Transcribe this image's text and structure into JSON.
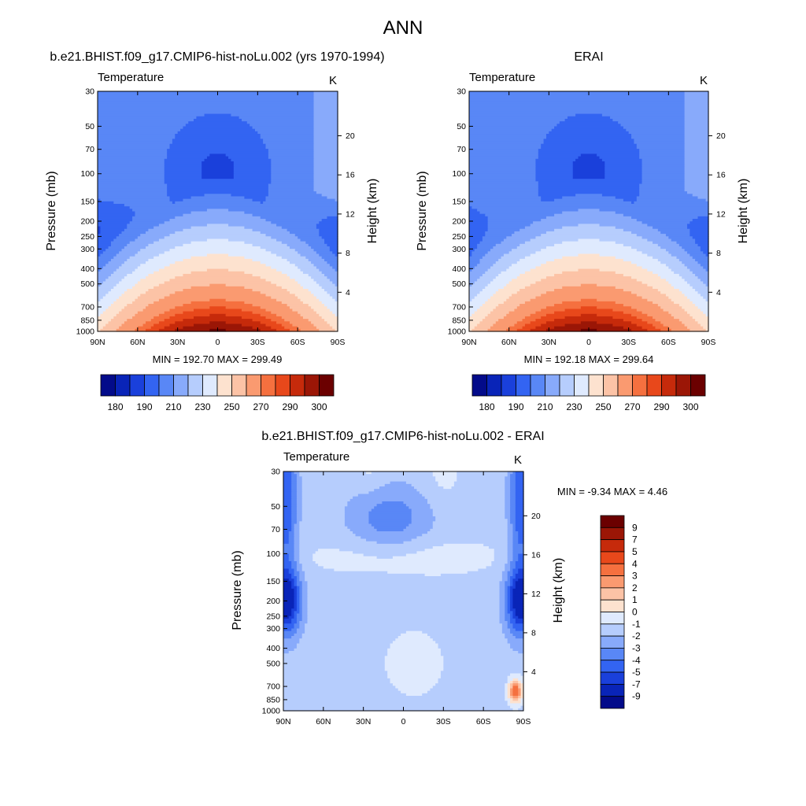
{
  "figure_title": "ANN",
  "colors": {
    "temperature_levels": [
      "#030b8a",
      "#0924b8",
      "#1a40db",
      "#3364f2",
      "#5987f6",
      "#88aafb",
      "#b6cdfd",
      "#dfeafe",
      "#fde2cf",
      "#fcc3a6",
      "#fa9a70",
      "#f5703f",
      "#e8481b",
      "#c62a0b",
      "#9b1606",
      "#6b0000"
    ],
    "difference_levels": [
      "#030b8a",
      "#0924b8",
      "#1a40db",
      "#3364f2",
      "#5987f6",
      "#88aafb",
      "#b6cdfd",
      "#dfeafe",
      "#fde2cf",
      "#fcc3a6",
      "#fa9a70",
      "#f5703f",
      "#e8481b",
      "#c62a0b",
      "#9b1606",
      "#6b0000"
    ]
  },
  "panels": {
    "model": {
      "title": "b.e21.BHIST.f09_g17.CMIP6-hist-noLu.002 (yrs 1970-1994)",
      "variable": "Temperature",
      "units": "K",
      "ylabel": "Pressure (mb)",
      "ylabel_right": "Height (km)",
      "min_max": "MIN = 192.70  MAX = 299.49"
    },
    "erai": {
      "title": "ERAI",
      "variable": "Temperature",
      "units": "K",
      "ylabel": "Pressure (mb)",
      "ylabel_right": "Height (km)",
      "min_max": "MIN = 192.18  MAX = 299.64"
    },
    "diff": {
      "title": "b.e21.BHIST.f09_g17.CMIP6-hist-noLu.002 - ERAI",
      "variable": "Temperature",
      "units": "K",
      "ylabel": "Pressure (mb)",
      "ylabel_right": "Height (km)",
      "min_max": "MIN =  -9.34  MAX =   4.46"
    }
  },
  "chart_data": [
    {
      "type": "heatmap",
      "title": "b.e21.BHIST.f09_g17.CMIP6-hist-noLu.002 (yrs 1970-1994)",
      "variable": "Temperature",
      "units": "K",
      "x_ticks": [
        "90N",
        "60N",
        "30N",
        "0",
        "30S",
        "60S",
        "90S"
      ],
      "xlim": [
        90,
        -90
      ],
      "y_ticks": [
        30,
        50,
        70,
        100,
        150,
        200,
        250,
        300,
        400,
        500,
        700,
        850,
        1000
      ],
      "ylim": [
        30,
        1000
      ],
      "y_scale": "log",
      "y2_ticks": [
        20,
        16,
        12,
        8,
        4
      ],
      "ylabel": "Pressure (mb)",
      "y2label": "Height (km)",
      "min": 192.7,
      "max": 299.49,
      "colorbar_labels": [
        180,
        190,
        210,
        230,
        250,
        270,
        290,
        300
      ]
    },
    {
      "type": "heatmap",
      "title": "ERAI",
      "variable": "Temperature",
      "units": "K",
      "x_ticks": [
        "90N",
        "60N",
        "30N",
        "0",
        "30S",
        "60S",
        "90S"
      ],
      "xlim": [
        90,
        -90
      ],
      "y_ticks": [
        30,
        50,
        70,
        100,
        150,
        200,
        250,
        300,
        400,
        500,
        700,
        850,
        1000
      ],
      "ylim": [
        30,
        1000
      ],
      "y_scale": "log",
      "y2_ticks": [
        20,
        16,
        12,
        8,
        4
      ],
      "ylabel": "Pressure (mb)",
      "y2label": "Height (km)",
      "min": 192.18,
      "max": 299.64,
      "colorbar_labels": [
        180,
        190,
        210,
        230,
        250,
        270,
        290,
        300
      ]
    },
    {
      "type": "heatmap",
      "title": "b.e21.BHIST.f09_g17.CMIP6-hist-noLu.002 - ERAI",
      "variable": "Temperature",
      "units": "K",
      "x_ticks": [
        "90N",
        "60N",
        "30N",
        "0",
        "30S",
        "60S",
        "90S"
      ],
      "xlim": [
        90,
        -90
      ],
      "y_ticks": [
        30,
        50,
        70,
        100,
        150,
        200,
        250,
        300,
        400,
        500,
        700,
        850,
        1000
      ],
      "ylim": [
        30,
        1000
      ],
      "y_scale": "log",
      "y2_ticks": [
        20,
        16,
        12,
        8,
        4
      ],
      "ylabel": "Pressure (mb)",
      "y2label": "Height (km)",
      "min": -9.34,
      "max": 4.46,
      "colorbar_labels": [
        9,
        7,
        5,
        4,
        3,
        2,
        1,
        0,
        -1,
        -2,
        -3,
        -4,
        -5,
        -7,
        -9
      ]
    }
  ]
}
